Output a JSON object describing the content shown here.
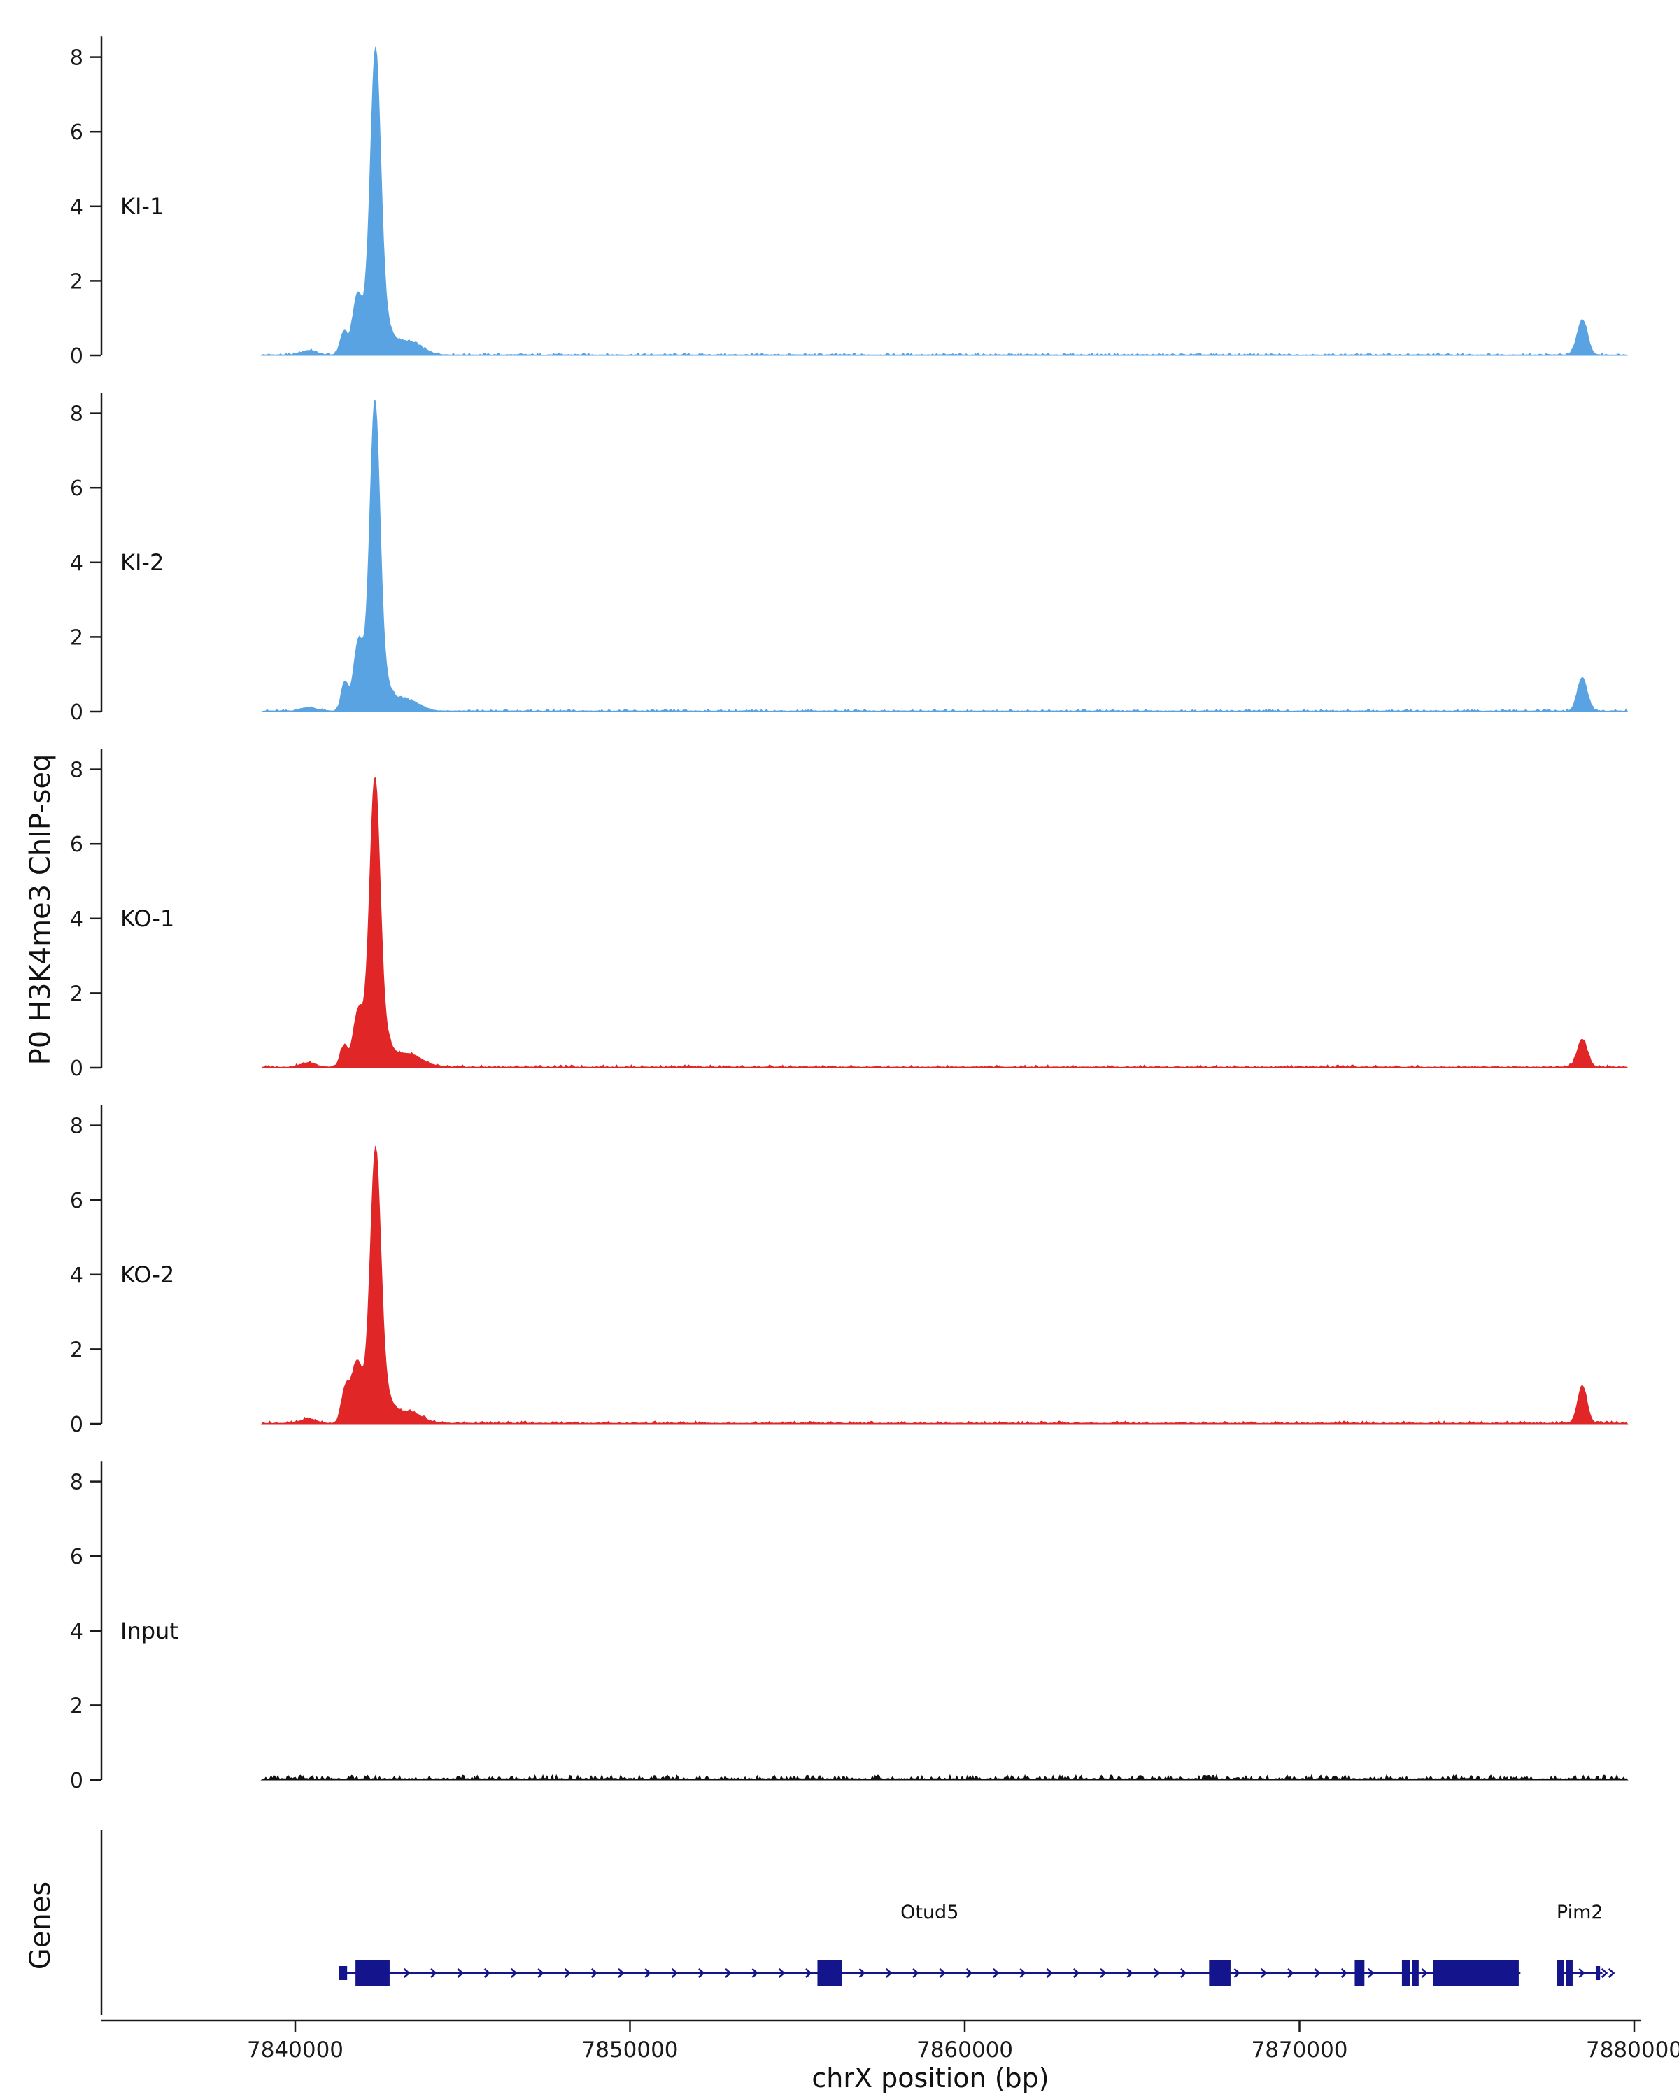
{
  "figure": {
    "y_axis_title": "P0 H3K4me3 ChIP-seq",
    "genes_axis_title": "Genes",
    "x_axis_title": "chrX position (bp)"
  },
  "chart_data": {
    "type": "area",
    "title": "",
    "xlabel": "chrX position (bp)",
    "ylabel": "P0 H3K4me3 ChIP-seq",
    "x_domain": [
      7839000,
      7879800
    ],
    "x_ticks": [
      7840000,
      7850000,
      7860000,
      7870000,
      7880000
    ],
    "x_tick_labels": [
      "7840000",
      "7850000",
      "7860000",
      "7870000",
      "7880000"
    ],
    "y_ticks": [
      0,
      2,
      4,
      6,
      8
    ],
    "ylim": [
      0,
      8.6
    ],
    "grid": false,
    "legend": "none",
    "tracks": [
      {
        "name": "KI-1",
        "color": "#5aa3e3",
        "noise": 0.035,
        "max_value": 8.2,
        "peaks": [
          {
            "center": 7842400,
            "height": 6.9,
            "sigma": 150
          },
          {
            "center": 7842420,
            "height": 1.35,
            "sigma": 330
          },
          {
            "center": 7841850,
            "height": 1.35,
            "sigma": 140
          },
          {
            "center": 7841450,
            "height": 0.6,
            "sigma": 110
          },
          {
            "center": 7843400,
            "height": 0.35,
            "sigma": 380
          },
          {
            "center": 7840400,
            "height": 0.12,
            "sigma": 220
          },
          {
            "center": 7878450,
            "height": 0.95,
            "sigma": 150
          }
        ]
      },
      {
        "name": "KI-2",
        "color": "#5aa3e3",
        "noise": 0.035,
        "max_value": 8.3,
        "peaks": [
          {
            "center": 7842380,
            "height": 7.0,
            "sigma": 145
          },
          {
            "center": 7842400,
            "height": 1.35,
            "sigma": 320
          },
          {
            "center": 7841880,
            "height": 1.55,
            "sigma": 140
          },
          {
            "center": 7841480,
            "height": 0.75,
            "sigma": 105
          },
          {
            "center": 7843350,
            "height": 0.3,
            "sigma": 360
          },
          {
            "center": 7840400,
            "height": 0.1,
            "sigma": 220
          },
          {
            "center": 7878450,
            "height": 0.9,
            "sigma": 145
          }
        ]
      },
      {
        "name": "KO-1",
        "color": "#e02626",
        "noise": 0.04,
        "max_value": 7.8,
        "peaks": [
          {
            "center": 7842380,
            "height": 6.5,
            "sigma": 150
          },
          {
            "center": 7842400,
            "height": 1.3,
            "sigma": 330
          },
          {
            "center": 7841870,
            "height": 1.2,
            "sigma": 140
          },
          {
            "center": 7841450,
            "height": 0.55,
            "sigma": 110
          },
          {
            "center": 7843400,
            "height": 0.35,
            "sigma": 380
          },
          {
            "center": 7840400,
            "height": 0.12,
            "sigma": 220
          },
          {
            "center": 7878450,
            "height": 0.75,
            "sigma": 150
          }
        ]
      },
      {
        "name": "KO-2",
        "color": "#e02626",
        "noise": 0.04,
        "max_value": 7.5,
        "peaks": [
          {
            "center": 7842400,
            "height": 6.1,
            "sigma": 150
          },
          {
            "center": 7842420,
            "height": 1.3,
            "sigma": 330
          },
          {
            "center": 7841830,
            "height": 1.4,
            "sigma": 150
          },
          {
            "center": 7841500,
            "height": 0.9,
            "sigma": 120
          },
          {
            "center": 7843400,
            "height": 0.3,
            "sigma": 380
          },
          {
            "center": 7840400,
            "height": 0.12,
            "sigma": 220
          },
          {
            "center": 7878450,
            "height": 1.0,
            "sigma": 140
          }
        ]
      },
      {
        "name": "Input",
        "color": "#111111",
        "noise": 0.07,
        "max_value": 0.15,
        "peaks": []
      }
    ],
    "gene_color": "#14148c",
    "genes": [
      {
        "name": "Otud5",
        "strand": "+",
        "start": 7841300,
        "end": 7876600,
        "end_arrow": false,
        "exons": [
          {
            "start": 7841300,
            "end": 7841550,
            "type": "utr"
          },
          {
            "start": 7841800,
            "end": 7842820,
            "type": "cds"
          },
          {
            "start": 7855600,
            "end": 7856330,
            "type": "cds"
          },
          {
            "start": 7867300,
            "end": 7867940,
            "type": "cds"
          },
          {
            "start": 7871650,
            "end": 7871940,
            "type": "cds"
          },
          {
            "start": 7873060,
            "end": 7873300,
            "type": "cds"
          },
          {
            "start": 7873360,
            "end": 7873560,
            "type": "cds"
          },
          {
            "start": 7874000,
            "end": 7876550,
            "type": "cds"
          }
        ]
      },
      {
        "name": "Pim2",
        "strand": "+",
        "start": 7877700,
        "end": 7879050,
        "end_arrow": true,
        "exons": [
          {
            "start": 7877700,
            "end": 7877900,
            "type": "cds"
          },
          {
            "start": 7877960,
            "end": 7878160,
            "type": "cds"
          },
          {
            "start": 7878850,
            "end": 7878980,
            "type": "utr"
          }
        ]
      }
    ]
  }
}
